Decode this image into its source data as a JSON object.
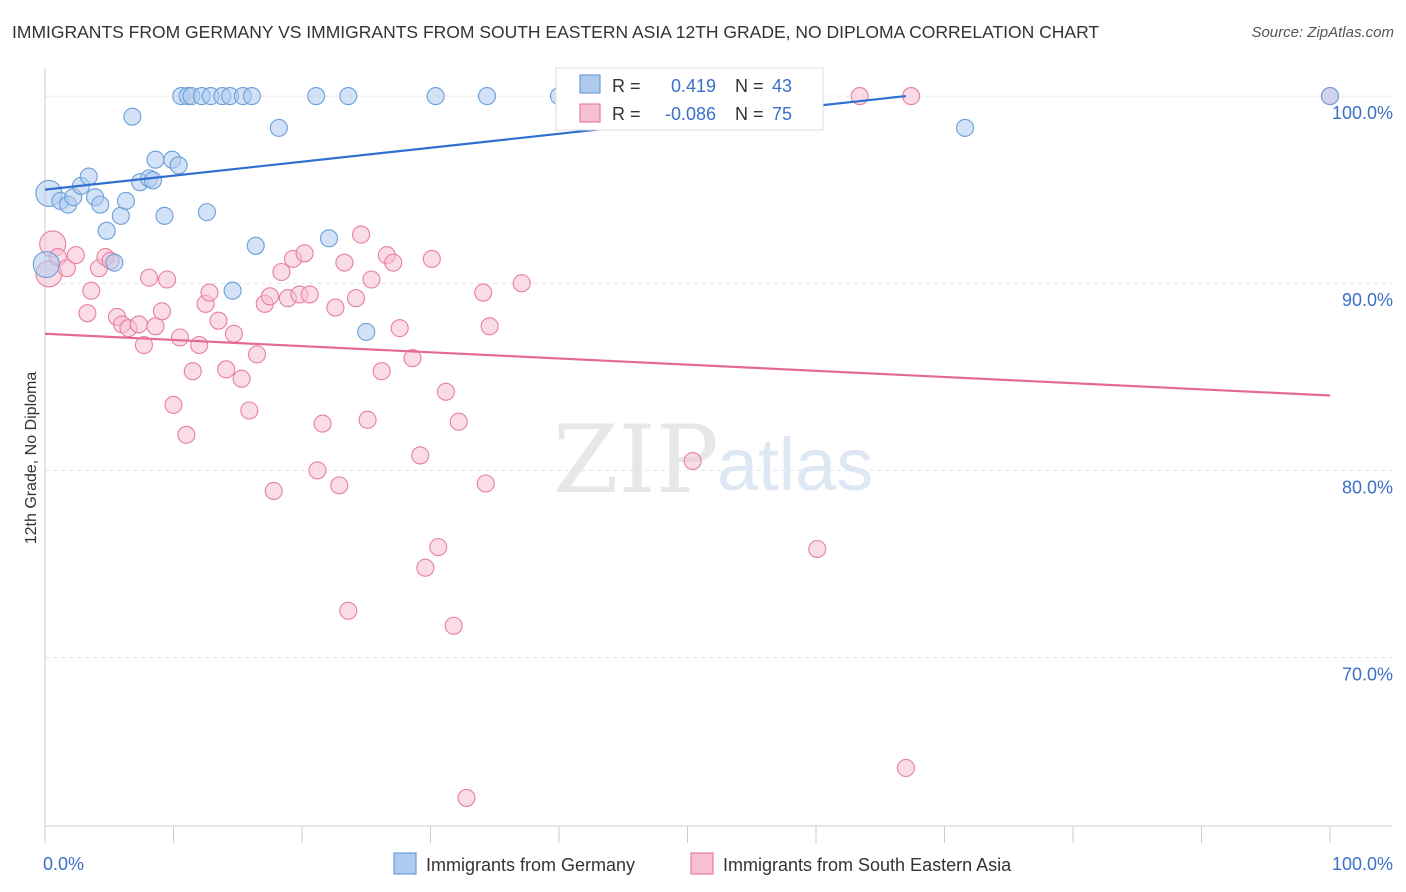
{
  "title": "IMMIGRANTS FROM GERMANY VS IMMIGRANTS FROM SOUTH EASTERN ASIA 12TH GRADE, NO DIPLOMA CORRELATION CHART",
  "source": "Source: ZipAtlas.com",
  "watermark": {
    "zip": "ZIP",
    "atlas": "atlas"
  },
  "colors": {
    "blue": "#6a9fd8",
    "blue_fill": "#aecbee",
    "blue_line": "#2f6fd0",
    "pink": "#e87fa0",
    "pink_fill": "#f6c0d2",
    "pink_line": "#e46a92",
    "tick_blue": "#3a70c9"
  },
  "legend_box": [
    {
      "r_label": "R =",
      "r_value": "0.419",
      "n_label": "N =",
      "n_value": "43"
    },
    {
      "r_label": "R =",
      "r_value": "-0.086",
      "n_label": "N =",
      "n_value": "75"
    }
  ],
  "chart_data": {
    "type": "scatter",
    "title": "IMMIGRANTS FROM GERMANY VS IMMIGRANTS FROM SOUTH EASTERN ASIA 12TH GRADE, NO DIPLOMA CORRELATION CHART",
    "xlabel": "",
    "ylabel": "12th Grade, No Diploma",
    "x_tick_labels": [
      "0.0%",
      "100.0%"
    ],
    "y_tick_labels": [
      "100.0%",
      "90.0%",
      "80.0%",
      "70.0%"
    ],
    "y_ticks": [
      100,
      90,
      80,
      70
    ],
    "xlim": [
      0,
      100
    ],
    "ylim": [
      61,
      101.5
    ],
    "grid": true,
    "legend_position": "bottom",
    "series": [
      {
        "name": "Immigrants from Germany",
        "color": "#6a9fd8",
        "trend": {
          "x": [
            0,
            67
          ],
          "y": [
            95.0,
            100.0
          ]
        },
        "points": [
          [
            0.1,
            91
          ],
          [
            0.3,
            94.8
          ],
          [
            1.2,
            94.4
          ],
          [
            1.8,
            94.2
          ],
          [
            2.2,
            94.6
          ],
          [
            2.8,
            95.2
          ],
          [
            3.4,
            95.7
          ],
          [
            3.9,
            94.6
          ],
          [
            4.3,
            94.2
          ],
          [
            4.8,
            92.8
          ],
          [
            5.4,
            91.1
          ],
          [
            5.9,
            93.6
          ],
          [
            6.3,
            94.4
          ],
          [
            6.8,
            98.9
          ],
          [
            7.4,
            95.4
          ],
          [
            8.1,
            95.6
          ],
          [
            8.4,
            95.5
          ],
          [
            8.6,
            96.6
          ],
          [
            9.3,
            93.6
          ],
          [
            9.9,
            96.6
          ],
          [
            10.4,
            96.3
          ],
          [
            10.6,
            100
          ],
          [
            11.1,
            100
          ],
          [
            11.4,
            100
          ],
          [
            12.2,
            100
          ],
          [
            12.6,
            93.8
          ],
          [
            12.9,
            100
          ],
          [
            13.8,
            100
          ],
          [
            14.4,
            100
          ],
          [
            14.6,
            89.6
          ],
          [
            15.4,
            100
          ],
          [
            16.1,
            100
          ],
          [
            16.4,
            92.0
          ],
          [
            18.2,
            98.3
          ],
          [
            21.1,
            100
          ],
          [
            22.1,
            92.4
          ],
          [
            23.6,
            100
          ],
          [
            25.0,
            87.4
          ],
          [
            30.4,
            100
          ],
          [
            34.4,
            100
          ],
          [
            40.0,
            100
          ],
          [
            71.6,
            98.3
          ],
          [
            100,
            100
          ]
        ]
      },
      {
        "name": "Immigrants from South Eastern Asia",
        "color": "#e87fa0",
        "trend": {
          "x": [
            0,
            100
          ],
          "y": [
            87.3,
            84.0
          ]
        },
        "points": [
          [
            0.3,
            90.5
          ],
          [
            0.6,
            92.1
          ],
          [
            1.0,
            91.4
          ],
          [
            1.7,
            90.8
          ],
          [
            2.4,
            91.5
          ],
          [
            3.3,
            88.4
          ],
          [
            3.6,
            89.6
          ],
          [
            4.2,
            90.8
          ],
          [
            4.7,
            91.4
          ],
          [
            5.1,
            91.2
          ],
          [
            5.6,
            88.2
          ],
          [
            6.0,
            87.8
          ],
          [
            6.5,
            87.6
          ],
          [
            7.3,
            87.8
          ],
          [
            7.7,
            86.7
          ],
          [
            8.1,
            90.3
          ],
          [
            8.6,
            87.7
          ],
          [
            9.1,
            88.5
          ],
          [
            9.5,
            90.2
          ],
          [
            10.0,
            83.5
          ],
          [
            10.5,
            87.1
          ],
          [
            11.0,
            81.9
          ],
          [
            11.5,
            85.3
          ],
          [
            12.0,
            86.7
          ],
          [
            12.5,
            88.9
          ],
          [
            12.8,
            89.5
          ],
          [
            13.5,
            88.0
          ],
          [
            14.1,
            85.4
          ],
          [
            14.7,
            87.3
          ],
          [
            15.3,
            84.9
          ],
          [
            15.9,
            83.2
          ],
          [
            16.5,
            86.2
          ],
          [
            17.1,
            88.9
          ],
          [
            17.5,
            89.3
          ],
          [
            17.8,
            78.9
          ],
          [
            18.4,
            90.6
          ],
          [
            18.9,
            89.2
          ],
          [
            19.3,
            91.3
          ],
          [
            19.8,
            89.4
          ],
          [
            20.2,
            91.6
          ],
          [
            20.6,
            89.4
          ],
          [
            21.2,
            80.0
          ],
          [
            21.6,
            82.5
          ],
          [
            22.6,
            88.7
          ],
          [
            22.9,
            79.2
          ],
          [
            23.3,
            91.1
          ],
          [
            23.6,
            72.5
          ],
          [
            24.2,
            89.2
          ],
          [
            24.6,
            92.6
          ],
          [
            25.1,
            82.7
          ],
          [
            25.4,
            90.2
          ],
          [
            26.2,
            85.3
          ],
          [
            26.6,
            91.5
          ],
          [
            27.1,
            91.1
          ],
          [
            27.6,
            87.6
          ],
          [
            28.6,
            86.0
          ],
          [
            29.2,
            80.8
          ],
          [
            29.6,
            74.8
          ],
          [
            30.1,
            91.3
          ],
          [
            30.6,
            75.9
          ],
          [
            31.2,
            84.2
          ],
          [
            31.8,
            71.7
          ],
          [
            32.2,
            82.6
          ],
          [
            32.8,
            62.5
          ],
          [
            34.1,
            89.5
          ],
          [
            34.3,
            79.3
          ],
          [
            34.6,
            87.7
          ],
          [
            37.1,
            90.0
          ],
          [
            50.0,
            100
          ],
          [
            50.4,
            80.5
          ],
          [
            60.1,
            75.8
          ],
          [
            63.4,
            100
          ],
          [
            67.0,
            64.1
          ],
          [
            67.4,
            100
          ],
          [
            100,
            100
          ]
        ]
      }
    ]
  },
  "bottom_legend": [
    "Immigrants from Germany",
    "Immigrants from South Eastern Asia"
  ]
}
